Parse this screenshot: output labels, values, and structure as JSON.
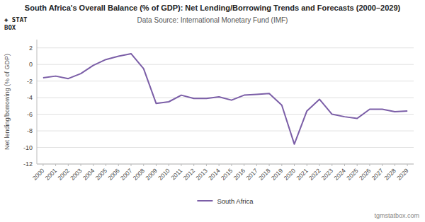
{
  "chart_data": {
    "type": "line",
    "title": "South Africa's Overall Balance (% of GDP): Net Lending/Borrowing Trends and Forecasts (2000–2029)",
    "subtitle": "Data Source: International Monetary Fund (IMF)",
    "y_label": "Net lending/borrowing (% of GDP)",
    "annotations": [
      "tgmstatbox.com",
      "◈ STAT\nBOX"
    ],
    "x": [
      2000,
      2001,
      2002,
      2003,
      2004,
      2005,
      2006,
      2007,
      2008,
      2009,
      2010,
      2011,
      2012,
      2013,
      2014,
      2015,
      2016,
      2017,
      2018,
      2019,
      2020,
      2021,
      2022,
      2023,
      2024,
      2025,
      2026,
      2027,
      2028,
      2029
    ],
    "series": [
      {
        "name": "South Africa",
        "color": "#7B5EA7",
        "values": [
          -1.6,
          -1.4,
          -1.7,
          -1.1,
          -0.1,
          0.6,
          1.0,
          1.3,
          -0.5,
          -4.7,
          -4.5,
          -3.7,
          -4.1,
          -4.1,
          -3.9,
          -4.3,
          -3.7,
          -3.6,
          -3.5,
          -4.9,
          -9.6,
          -5.6,
          -4.2,
          -6.0,
          -6.3,
          -6.5,
          -5.4,
          -5.4,
          -5.7,
          -5.6
        ]
      }
    ],
    "xlim": [
      1999.5,
      2029.5
    ],
    "xticks": [
      2000,
      2001,
      2002,
      2003,
      2004,
      2005,
      2006,
      2007,
      2008,
      2009,
      2010,
      2011,
      2012,
      2013,
      2014,
      2015,
      2016,
      2017,
      2018,
      2019,
      2020,
      2021,
      2022,
      2023,
      2024,
      2025,
      2026,
      2027,
      2028,
      2029
    ],
    "ylim": [
      -12,
      3
    ],
    "yticks": [
      -12,
      -10,
      -8,
      -6,
      -4,
      -2,
      0,
      2
    ],
    "grid": true,
    "legend": "bottom"
  }
}
